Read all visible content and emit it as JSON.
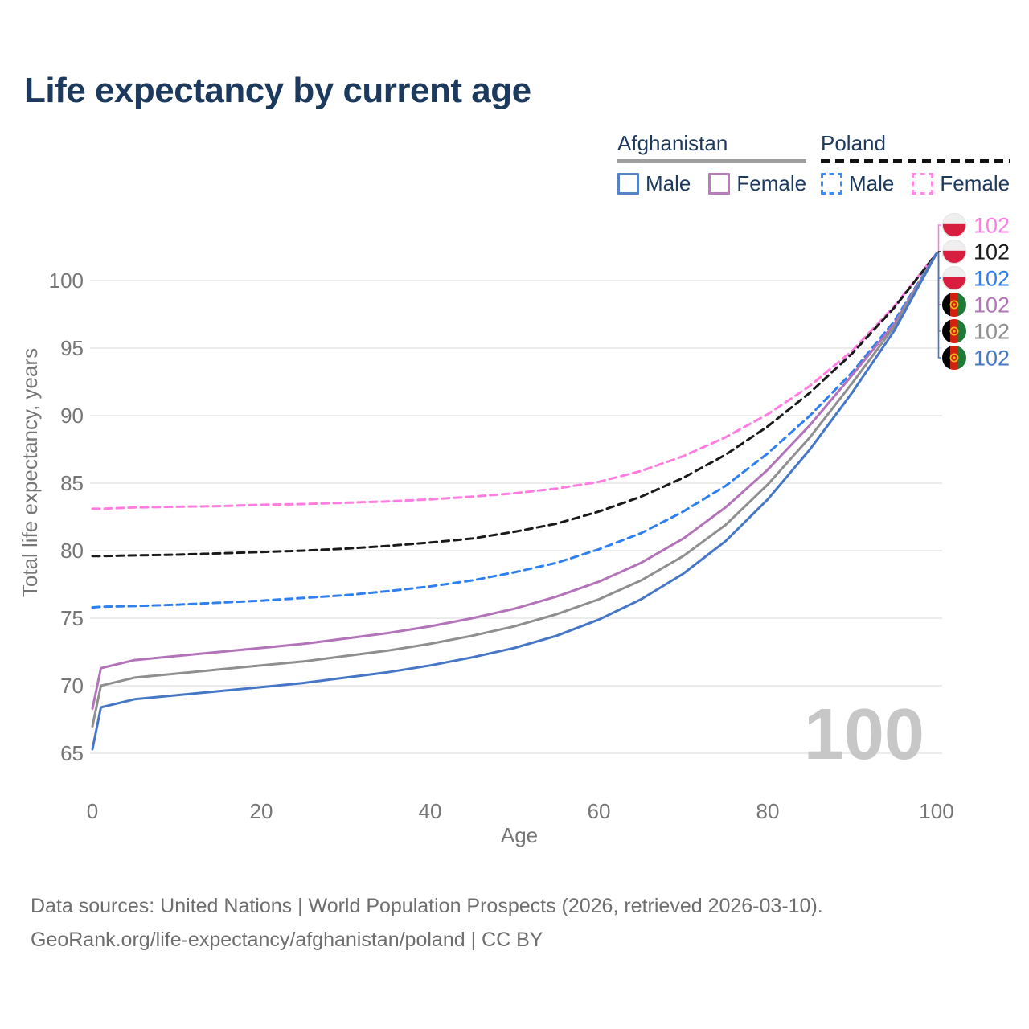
{
  "title": "Life expectancy by current age",
  "legend": {
    "groups": [
      {
        "name": "Afghanistan",
        "line_style": "solid",
        "underline_color": "#9e9e9e",
        "items": [
          {
            "label": "Male",
            "color": "#5583c7"
          },
          {
            "label": "Female",
            "color": "#ba7cbc"
          }
        ]
      },
      {
        "name": "Poland",
        "line_style": "dashed",
        "underline_color": "#111111",
        "items": [
          {
            "label": "Male",
            "color": "#418bf2"
          },
          {
            "label": "Female",
            "color": "#fb8be3"
          }
        ]
      }
    ]
  },
  "footer": {
    "line1": "Data sources: United Nations | World Population Prospects (2026, retrieved 2026-03-10).",
    "line2": "GeoRank.org/life-expectancy/afghanistan/poland | CC BY"
  },
  "chart_data": {
    "type": "line",
    "title": "Life expectancy by current age",
    "xlabel": "Age",
    "ylabel": "Total life expectancy, years",
    "xlim": [
      0,
      100
    ],
    "ylim": [
      63.5,
      103.5
    ],
    "xticks": [
      0,
      20,
      40,
      60,
      80,
      100
    ],
    "yticks": [
      65,
      70,
      75,
      80,
      85,
      90,
      95,
      100
    ],
    "grid": "horizontal",
    "legend_position": "top-right",
    "age_watermark": "100",
    "ages": [
      0,
      1,
      5,
      10,
      15,
      20,
      25,
      30,
      35,
      40,
      45,
      50,
      55,
      60,
      65,
      70,
      75,
      80,
      85,
      90,
      95,
      100
    ],
    "series": [
      {
        "name": "Poland Female",
        "country": "Poland",
        "sex": "Female",
        "flag": "poland",
        "style": "dashed",
        "color": "#ff7de1",
        "end_label": "102",
        "values": [
          83.1,
          83.1,
          83.2,
          83.25,
          83.3,
          83.4,
          83.45,
          83.55,
          83.65,
          83.8,
          84.0,
          84.25,
          84.6,
          85.1,
          85.9,
          87.0,
          88.4,
          90.1,
          92.2,
          94.8,
          98.1,
          102
        ]
      },
      {
        "name": "Poland Both sexes",
        "country": "Poland",
        "sex": "Both",
        "flag": "poland",
        "style": "dashed",
        "color": "#1a1a1a",
        "end_label": "102",
        "values": [
          79.6,
          79.6,
          79.65,
          79.7,
          79.8,
          79.9,
          80.0,
          80.15,
          80.35,
          80.6,
          80.9,
          81.4,
          82.0,
          82.9,
          84.0,
          85.4,
          87.1,
          89.2,
          91.7,
          94.6,
          98.0,
          102
        ]
      },
      {
        "name": "Poland Male",
        "country": "Poland",
        "sex": "Male",
        "flag": "poland",
        "style": "dashed",
        "color": "#2e80f0",
        "end_label": "102",
        "values": [
          75.8,
          75.85,
          75.9,
          76.0,
          76.15,
          76.3,
          76.5,
          76.7,
          77.0,
          77.35,
          77.8,
          78.4,
          79.1,
          80.1,
          81.3,
          82.9,
          84.8,
          87.2,
          90.0,
          93.2,
          97.0,
          102
        ]
      },
      {
        "name": "Afghanistan Female",
        "country": "Afghanistan",
        "sex": "Female",
        "flag": "afghanistan",
        "style": "solid",
        "color": "#b273b8",
        "end_label": "102",
        "values": [
          68.3,
          71.3,
          71.9,
          72.2,
          72.5,
          72.8,
          73.1,
          73.5,
          73.9,
          74.4,
          75.0,
          75.7,
          76.6,
          77.7,
          79.1,
          80.9,
          83.2,
          86.0,
          89.3,
          93.0,
          96.8,
          102
        ]
      },
      {
        "name": "Afghanistan Both sexes",
        "country": "Afghanistan",
        "sex": "Both",
        "flag": "afghanistan",
        "style": "solid",
        "color": "#8f8f8f",
        "end_label": "102",
        "values": [
          67.0,
          70.0,
          70.6,
          70.9,
          71.2,
          71.5,
          71.8,
          72.2,
          72.6,
          73.1,
          73.7,
          74.4,
          75.3,
          76.4,
          77.8,
          79.6,
          81.9,
          84.9,
          88.4,
          92.4,
          96.6,
          102
        ]
      },
      {
        "name": "Afghanistan Male",
        "country": "Afghanistan",
        "sex": "Male",
        "flag": "afghanistan",
        "style": "solid",
        "color": "#4677c6",
        "end_label": "102",
        "values": [
          65.3,
          68.4,
          69.0,
          69.3,
          69.6,
          69.9,
          70.2,
          70.6,
          71.0,
          71.5,
          72.1,
          72.8,
          73.7,
          74.9,
          76.4,
          78.3,
          80.7,
          83.8,
          87.5,
          91.7,
          96.3,
          102
        ]
      }
    ]
  }
}
